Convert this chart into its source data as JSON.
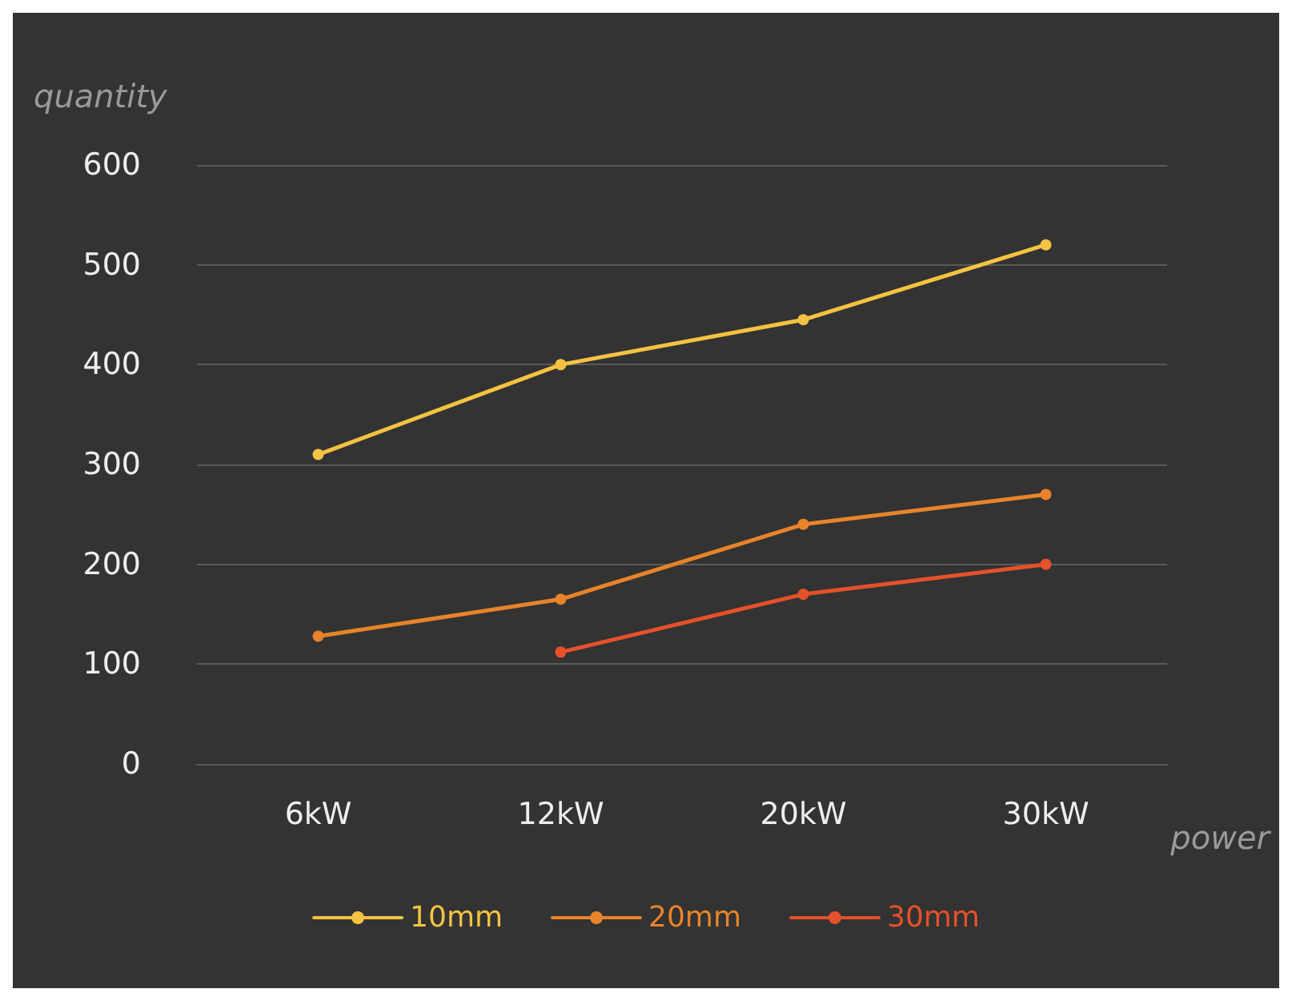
{
  "chart_data": {
    "type": "line",
    "xlabel": "power",
    "ylabel": "quantity",
    "categories": [
      "6kW",
      "12kW",
      "20kW",
      "30kW"
    ],
    "series": [
      {
        "name": "10mm",
        "color": "#f5c242",
        "values": [
          310,
          400,
          445,
          520
        ]
      },
      {
        "name": "20mm",
        "color": "#e8832a",
        "values": [
          128,
          165,
          240,
          270
        ]
      },
      {
        "name": "30mm",
        "color": "#e5512a",
        "values": [
          null,
          112,
          170,
          200
        ]
      }
    ],
    "ylim": [
      0,
      600
    ],
    "yticks": [
      0,
      100,
      200,
      300,
      400,
      500,
      600
    ],
    "grid": "y",
    "legend": "bottom",
    "marker": "circle",
    "line_style": "solid"
  }
}
